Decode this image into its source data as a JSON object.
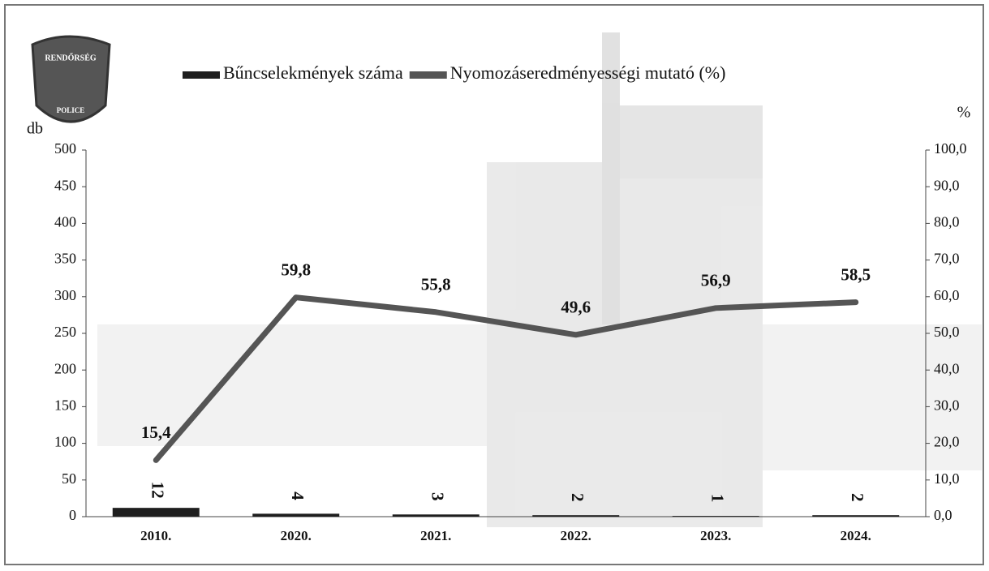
{
  "chart_data": {
    "type": "combo",
    "logo": {
      "top": "RENDŐRSÉG",
      "bottom": "POLICE"
    },
    "ylabel": "db",
    "y2label": "%",
    "categories": [
      "2010.",
      "2020.",
      "2021.",
      "2022.",
      "2023.",
      "2024."
    ],
    "series": [
      {
        "name": "Bűncselekmények száma",
        "type": "bar",
        "color": "#1e1e1e",
        "values": [
          12,
          4,
          3,
          2,
          1,
          2
        ]
      },
      {
        "name": "Nyomozáseredményességi mutató (%)",
        "type": "line",
        "axis": "y2",
        "color": "#555555",
        "values": [
          15.4,
          59.8,
          55.8,
          49.6,
          56.9,
          58.5
        ],
        "value_labels": [
          "15,4",
          "59,8",
          "55,8",
          "49,6",
          "56,9",
          "58,5"
        ]
      }
    ],
    "ylim": [
      0,
      500
    ],
    "yticks": [
      0,
      50,
      100,
      150,
      200,
      250,
      300,
      350,
      400,
      450,
      500
    ],
    "y2lim": [
      0,
      100
    ],
    "y2ticks": [
      {
        "value": 0,
        "label": "0,0"
      },
      {
        "value": 10,
        "label": "10,0"
      },
      {
        "value": 20,
        "label": "20,0"
      },
      {
        "value": 30,
        "label": "30,0"
      },
      {
        "value": 40,
        "label": "40,0"
      },
      {
        "value": 50,
        "label": "50,0"
      },
      {
        "value": 60,
        "label": "60,0"
      },
      {
        "value": 70,
        "label": "70,0"
      },
      {
        "value": 80,
        "label": "80,0"
      },
      {
        "value": 90,
        "label": "90,0"
      },
      {
        "value": 100,
        "label": "100,0"
      }
    ]
  }
}
